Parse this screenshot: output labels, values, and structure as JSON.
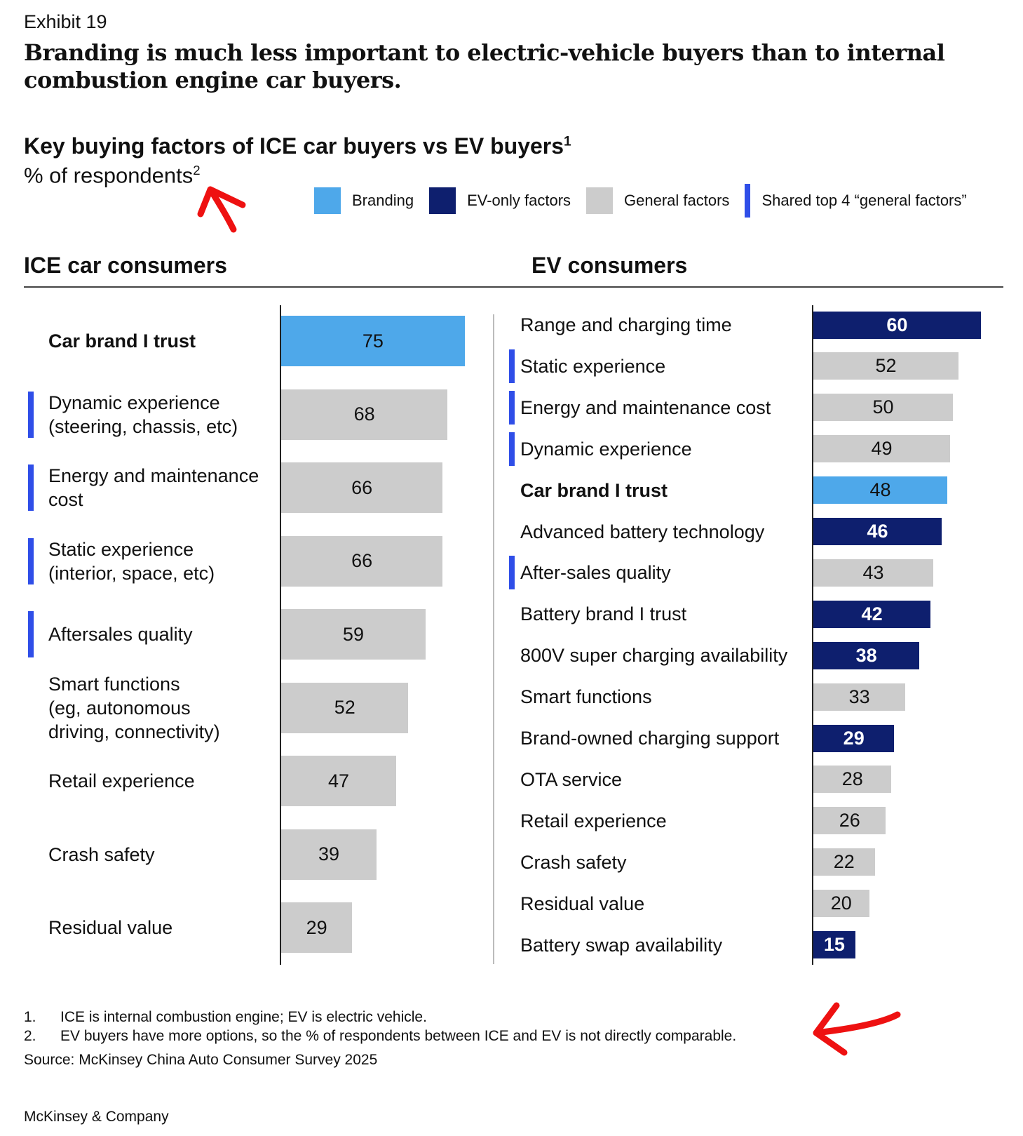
{
  "exhibit": "Exhibit 19",
  "title": "Branding is much less important to electric-vehicle buyers than to  internal combustion engine car buyers.",
  "subtitle": "Key buying factors of ICE car buyers vs EV buyers",
  "subtitle_sup": "1",
  "unit": "% of respondents",
  "unit_sup": "2",
  "colors": {
    "branding": "#4ea8ea",
    "ev_only": "#0e1f6e",
    "general": "#cccccc",
    "shared_marker": "#2f4ee8",
    "annotation": "#ee1111"
  },
  "legend": [
    {
      "label": "Branding",
      "type": "branding"
    },
    {
      "label": "EV-only factors",
      "type": "ev_only"
    },
    {
      "label": "General factors",
      "type": "general"
    },
    {
      "label": "Shared top 4 “general factors”",
      "type": "shared_marker"
    }
  ],
  "chart_data": [
    {
      "type": "bar",
      "orientation": "horizontal",
      "title": "ICE car consumers",
      "xlim": [
        0,
        75
      ],
      "categories": [
        "Car brand I trust",
        "Dynamic experience\n(steering, chassis, etc)",
        "Energy and maintenance\ncost",
        "Static experience\n(interior, space, etc)",
        "Aftersales quality",
        "Smart functions\n(eg, autonomous\ndriving, connectivity)",
        "Retail experience",
        "Crash safety",
        "Residual value"
      ],
      "values": [
        75,
        68,
        66,
        66,
        59,
        52,
        47,
        39,
        29
      ],
      "types": [
        "branding",
        "general",
        "general",
        "general",
        "general",
        "general",
        "general",
        "general",
        "general"
      ],
      "shared_top4": [
        false,
        true,
        true,
        true,
        true,
        false,
        false,
        false,
        false
      ]
    },
    {
      "type": "bar",
      "orientation": "horizontal",
      "title": "EV consumers",
      "xlim": [
        0,
        60
      ],
      "categories": [
        "Range and charging time",
        "Static experience",
        "Energy and maintenance cost",
        "Dynamic experience",
        "Car brand I trust",
        "Advanced battery technology",
        "After-sales quality",
        "Battery brand I trust",
        "800V super charging availability",
        "Smart functions",
        "Brand-owned charging support",
        "OTA service",
        "Retail experience",
        "Crash safety",
        "Residual value",
        "Battery swap availability"
      ],
      "values": [
        60,
        52,
        50,
        49,
        48,
        46,
        43,
        42,
        38,
        33,
        29,
        28,
        26,
        22,
        20,
        15
      ],
      "types": [
        "ev_only",
        "general",
        "general",
        "general",
        "branding",
        "ev_only",
        "general",
        "ev_only",
        "ev_only",
        "general",
        "ev_only",
        "general",
        "general",
        "general",
        "general",
        "ev_only"
      ],
      "shared_top4": [
        false,
        true,
        true,
        true,
        false,
        false,
        true,
        false,
        false,
        false,
        false,
        false,
        false,
        false,
        false,
        false
      ]
    }
  ],
  "footnotes": [
    {
      "num": "1.",
      "text": "ICE is internal combustion engine; EV is electric vehicle."
    },
    {
      "num": "2.",
      "text": "EV buyers have more options, so the % of respondents between ICE and EV is not directly comparable."
    }
  ],
  "source": "Source: McKinsey China Auto Consumer Survey 2025",
  "brand": "McKinsey & Company"
}
